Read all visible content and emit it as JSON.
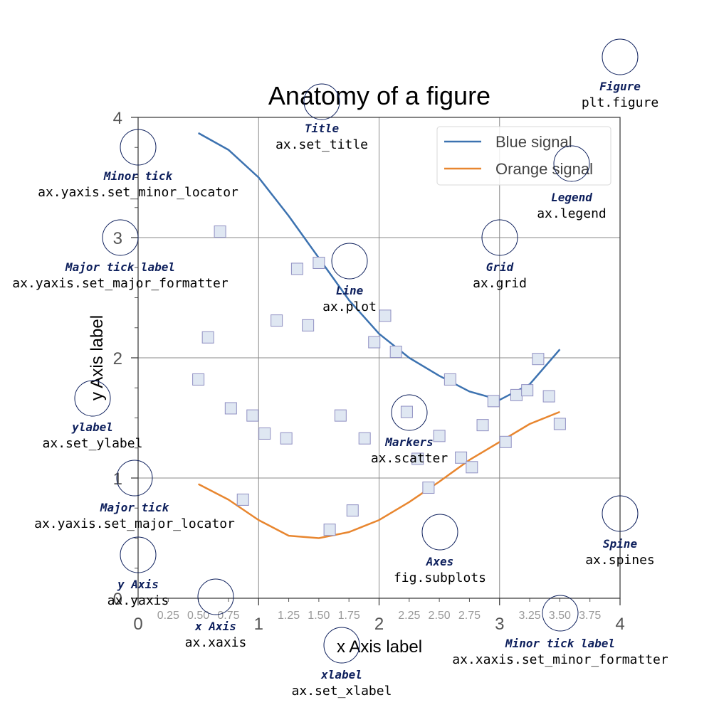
{
  "chart_data": {
    "type": "line",
    "title": "Anatomy of a figure",
    "xlabel": "x Axis label",
    "ylabel": "y Axis label",
    "xlim": [
      0,
      4
    ],
    "ylim": [
      0,
      4
    ],
    "grid": true,
    "legend_placement": "top-right",
    "x_major_ticks": [
      "0",
      "1",
      "2",
      "3",
      "4"
    ],
    "x_minor_ticks": [
      "0.25",
      "0.50",
      "0.75",
      "1.25",
      "1.50",
      "1.75",
      "2.25",
      "2.50",
      "2.75",
      "3.25",
      "3.50",
      "3.75"
    ],
    "y_major_ticks": [
      "0",
      "1",
      "2",
      "3",
      "4"
    ],
    "series": [
      {
        "name": "Blue signal",
        "color": "#3c72b0",
        "x": [
          0.5,
          0.75,
          1.0,
          1.25,
          1.5,
          1.75,
          2.0,
          2.25,
          2.5,
          2.75,
          3.0,
          3.25,
          3.5
        ],
        "y": [
          3.87,
          3.73,
          3.5,
          3.18,
          2.83,
          2.48,
          2.2,
          2.0,
          1.85,
          1.72,
          1.65,
          1.78,
          2.07
        ]
      },
      {
        "name": "Orange signal",
        "color": "#e8862f",
        "x": [
          0.5,
          0.75,
          1.0,
          1.25,
          1.5,
          1.75,
          2.0,
          2.25,
          2.5,
          2.75,
          3.0,
          3.25,
          3.5
        ],
        "y": [
          0.95,
          0.82,
          0.65,
          0.52,
          0.5,
          0.55,
          0.65,
          0.8,
          0.97,
          1.15,
          1.3,
          1.45,
          1.55
        ]
      },
      {
        "name": "",
        "type": "scatter",
        "marker": "square",
        "color": "#dfe7f2",
        "edgecolor": "#8f8fc2",
        "points": [
          [
            0.68,
            3.05
          ],
          [
            0.58,
            2.17
          ],
          [
            0.5,
            1.82
          ],
          [
            0.77,
            1.58
          ],
          [
            0.95,
            1.52
          ],
          [
            1.05,
            1.37
          ],
          [
            0.87,
            0.82
          ],
          [
            1.15,
            2.31
          ],
          [
            1.23,
            1.33
          ],
          [
            1.32,
            2.74
          ],
          [
            1.41,
            2.27
          ],
          [
            1.5,
            2.79
          ],
          [
            1.59,
            0.57
          ],
          [
            1.68,
            1.52
          ],
          [
            1.78,
            0.73
          ],
          [
            1.88,
            1.33
          ],
          [
            1.96,
            2.13
          ],
          [
            2.05,
            2.35
          ],
          [
            2.14,
            2.05
          ],
          [
            2.23,
            1.55
          ],
          [
            2.32,
            1.16
          ],
          [
            2.41,
            0.92
          ],
          [
            2.5,
            1.35
          ],
          [
            2.59,
            1.82
          ],
          [
            2.68,
            1.17
          ],
          [
            2.77,
            1.09
          ],
          [
            2.86,
            1.44
          ],
          [
            2.95,
            1.64
          ],
          [
            3.05,
            1.3
          ],
          [
            3.14,
            1.69
          ],
          [
            3.23,
            1.73
          ],
          [
            3.32,
            1.99
          ],
          [
            3.41,
            1.68
          ],
          [
            3.5,
            1.45
          ]
        ]
      }
    ],
    "annotations": [
      {
        "name": "Figure",
        "code": "plt.figure"
      },
      {
        "name": "Title",
        "code": "ax.set_title"
      },
      {
        "name": "Legend",
        "code": "ax.legend"
      },
      {
        "name": "Minor tick",
        "code": "ax.yaxis.set_minor_locator"
      },
      {
        "name": "Major tick label",
        "code": "ax.yaxis.set_major_formatter"
      },
      {
        "name": "Line",
        "code": "ax.plot"
      },
      {
        "name": "Grid",
        "code": "ax.grid"
      },
      {
        "name": "ylabel",
        "code": "ax.set_ylabel"
      },
      {
        "name": "Markers",
        "code": "ax.scatter"
      },
      {
        "name": "Major tick",
        "code": "ax.yaxis.set_major_locator"
      },
      {
        "name": "Spine",
        "code": "ax.spines"
      },
      {
        "name": "Axes",
        "code": "fig.subplots"
      },
      {
        "name": "y Axis",
        "code": "ax.yaxis"
      },
      {
        "name": "x Axis",
        "code": "ax.xaxis"
      },
      {
        "name": "Minor tick label",
        "code": "ax.xaxis.set_minor_formatter"
      },
      {
        "name": "xlabel",
        "code": "ax.set_xlabel"
      }
    ],
    "annotation_color": "#0d1f5c"
  }
}
